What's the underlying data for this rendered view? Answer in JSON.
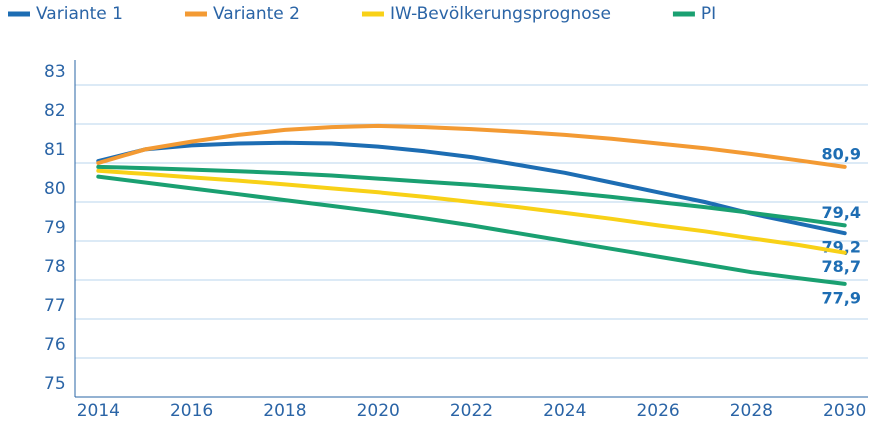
{
  "chart_data": {
    "type": "line",
    "x": [
      2014,
      2015,
      2016,
      2017,
      2018,
      2019,
      2020,
      2021,
      2022,
      2023,
      2024,
      2025,
      2026,
      2027,
      2028,
      2029,
      2030
    ],
    "xlim": [
      2013.5,
      2030.5
    ],
    "xticks": [
      2014,
      2016,
      2018,
      2020,
      2022,
      2024,
      2026,
      2028,
      2030
    ],
    "ylim": [
      75,
      83
    ],
    "yticks": [
      75,
      76,
      77,
      78,
      79,
      80,
      81,
      82,
      83
    ],
    "grid": true,
    "legend": "top",
    "series": [
      {
        "name": "Variante 1",
        "color": "#1d6db3",
        "values": [
          81.05,
          81.35,
          81.45,
          81.5,
          81.52,
          81.5,
          81.42,
          81.3,
          81.15,
          80.95,
          80.75,
          80.5,
          80.25,
          80.0,
          79.7,
          79.45,
          79.2
        ],
        "value_labels": [
          null,
          null,
          null,
          null,
          null,
          null,
          null,
          null,
          null,
          null,
          null,
          null,
          null,
          null,
          null,
          null,
          "79,2"
        ]
      },
      {
        "name": "Variante 2",
        "color": "#f39a33",
        "values": [
          81.0,
          81.35,
          81.55,
          81.72,
          81.85,
          81.92,
          81.95,
          81.92,
          81.87,
          81.8,
          81.72,
          81.62,
          81.5,
          81.38,
          81.23,
          81.07,
          80.9
        ],
        "value_labels": [
          null,
          null,
          null,
          null,
          null,
          null,
          null,
          null,
          null,
          null,
          null,
          null,
          null,
          null,
          null,
          null,
          "80,9"
        ]
      },
      {
        "name": "IW-Bevölkerungsprognose",
        "color": "#f8d117",
        "values": [
          80.8,
          80.72,
          80.63,
          80.55,
          80.45,
          80.35,
          80.25,
          80.13,
          80.0,
          79.87,
          79.72,
          79.57,
          79.4,
          79.25,
          79.07,
          78.9,
          78.7
        ],
        "value_labels": [
          null,
          null,
          null,
          null,
          null,
          null,
          null,
          null,
          null,
          null,
          null,
          null,
          null,
          null,
          null,
          null,
          "78,7"
        ]
      },
      {
        "name": "PI",
        "color": "#1aa071",
        "values": [
          80.9,
          80.87,
          80.83,
          80.79,
          80.74,
          80.68,
          80.6,
          80.52,
          80.44,
          80.35,
          80.25,
          80.13,
          80.0,
          79.87,
          79.72,
          79.57,
          79.4
        ],
        "value_labels": [
          null,
          null,
          null,
          null,
          null,
          null,
          null,
          null,
          null,
          null,
          null,
          null,
          null,
          null,
          null,
          null,
          "79,4"
        ]
      },
      {
        "color": "#1aa071",
        "values": [
          80.65,
          80.5,
          80.35,
          80.2,
          80.05,
          79.9,
          79.75,
          79.58,
          79.4,
          79.2,
          79.0,
          78.8,
          78.6,
          78.4,
          78.2,
          78.05,
          77.9
        ],
        "value_labels": [
          null,
          null,
          null,
          null,
          null,
          null,
          null,
          null,
          null,
          null,
          null,
          null,
          null,
          null,
          null,
          null,
          "77,9"
        ]
      }
    ]
  }
}
